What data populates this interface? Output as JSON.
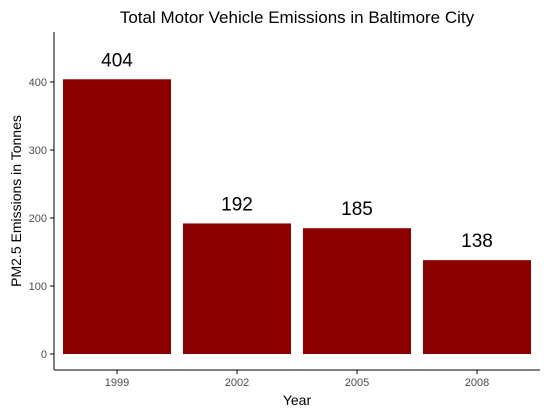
{
  "chart_data": {
    "type": "bar",
    "title": "Total Motor Vehicle Emissions in Baltimore City",
    "xlabel": "Year",
    "ylabel": "PM2.5 Emissions in Tonnes",
    "categories": [
      "1999",
      "2002",
      "2005",
      "2008"
    ],
    "values": [
      404,
      192,
      185,
      138
    ],
    "data_labels": [
      "404",
      "192",
      "185",
      "138"
    ],
    "y_ticks": [
      0,
      100,
      200,
      300,
      400
    ],
    "ylim": [
      0,
      430
    ],
    "grid": false,
    "legend": "none",
    "colors": {
      "bar": "#8b0000",
      "axis": "#000000",
      "tick_label": "#4d4d4d",
      "text": "#000000",
      "background": "#ffffff"
    }
  }
}
